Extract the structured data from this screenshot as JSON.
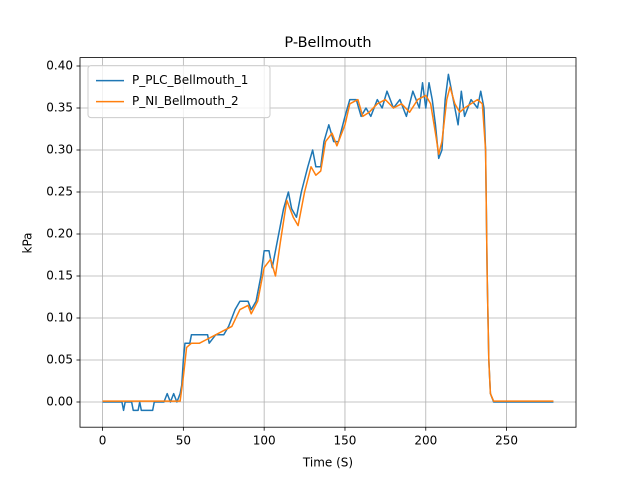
{
  "chart_data": {
    "type": "line",
    "title": "P-Bellmouth",
    "x_label": "Time (S)",
    "y_label": "kPa",
    "xlim": [
      -13.95,
      292.95
    ],
    "ylim": [
      -0.03,
      0.41
    ],
    "xticks": [
      0,
      50,
      100,
      150,
      200,
      250
    ],
    "yticks": [
      {
        "value": 0,
        "label": "0.00"
      },
      {
        "value": 0.05,
        "label": "0.05"
      },
      {
        "value": 0.1,
        "label": "0.10"
      },
      {
        "value": 0.15,
        "label": "0.15"
      },
      {
        "value": 0.2,
        "label": "0.20"
      },
      {
        "value": 0.25,
        "label": "0.25"
      },
      {
        "value": 0.3,
        "label": "0.30"
      },
      {
        "value": 0.35,
        "label": "0.35"
      },
      {
        "value": 0.4,
        "label": "0.40"
      }
    ],
    "grid": true,
    "legend": "upper-left",
    "series": [
      {
        "name": "P_PLC_Bellmouth_1",
        "color": "#1f77b4",
        "x": [
          0,
          12,
          13,
          14,
          18,
          19,
          22,
          23,
          24,
          31,
          32,
          38,
          40,
          42,
          44,
          46,
          48,
          49,
          50,
          51,
          54,
          55,
          65,
          66,
          70,
          75,
          78,
          82,
          85,
          90,
          92,
          95,
          98,
          100,
          103,
          105,
          108,
          112,
          115,
          117,
          120,
          123,
          127,
          130,
          132,
          135,
          137,
          140,
          143,
          146,
          150,
          153,
          157,
          160,
          163,
          166,
          170,
          173,
          176,
          180,
          184,
          188,
          192,
          196,
          198,
          200,
          202,
          204,
          206,
          208,
          210,
          212,
          214,
          216,
          218,
          220,
          222,
          224,
          228,
          232,
          234,
          236,
          237,
          238,
          239,
          240,
          242,
          279
        ],
        "values": [
          0,
          0,
          -0.01,
          0,
          0,
          -0.01,
          -0.01,
          0,
          -0.01,
          -0.01,
          0,
          0,
          0.01,
          0,
          0.01,
          0,
          0.01,
          0.02,
          0.05,
          0.07,
          0.07,
          0.08,
          0.08,
          0.07,
          0.08,
          0.08,
          0.09,
          0.11,
          0.12,
          0.12,
          0.11,
          0.12,
          0.15,
          0.18,
          0.18,
          0.16,
          0.19,
          0.23,
          0.25,
          0.23,
          0.22,
          0.25,
          0.28,
          0.3,
          0.28,
          0.28,
          0.31,
          0.33,
          0.31,
          0.31,
          0.34,
          0.36,
          0.36,
          0.34,
          0.35,
          0.34,
          0.36,
          0.35,
          0.37,
          0.35,
          0.36,
          0.34,
          0.37,
          0.35,
          0.38,
          0.35,
          0.38,
          0.36,
          0.33,
          0.29,
          0.3,
          0.36,
          0.39,
          0.37,
          0.35,
          0.33,
          0.37,
          0.34,
          0.36,
          0.35,
          0.37,
          0.35,
          0.3,
          0.15,
          0.05,
          0.01,
          0,
          0
        ]
      },
      {
        "name": "P_NI_Bellmouth_2",
        "color": "#ff7f0e",
        "x": [
          0,
          48,
          50,
          52,
          55,
          60,
          65,
          70,
          75,
          80,
          85,
          90,
          92,
          96,
          100,
          104,
          107,
          110,
          114,
          118,
          121,
          125,
          129,
          132,
          135,
          138,
          142,
          145,
          150,
          153,
          158,
          161,
          165,
          170,
          175,
          180,
          185,
          190,
          195,
          200,
          203,
          206,
          208,
          210,
          213,
          215,
          218,
          221,
          224,
          228,
          232,
          235,
          237,
          238,
          239,
          240,
          242,
          279
        ],
        "values": [
          0.001,
          0.001,
          0.03,
          0.065,
          0.07,
          0.07,
          0.075,
          0.08,
          0.085,
          0.09,
          0.11,
          0.115,
          0.105,
          0.12,
          0.16,
          0.17,
          0.15,
          0.19,
          0.24,
          0.22,
          0.21,
          0.25,
          0.28,
          0.27,
          0.275,
          0.31,
          0.32,
          0.305,
          0.33,
          0.355,
          0.36,
          0.34,
          0.345,
          0.355,
          0.36,
          0.35,
          0.355,
          0.345,
          0.36,
          0.365,
          0.355,
          0.32,
          0.295,
          0.31,
          0.36,
          0.375,
          0.355,
          0.345,
          0.35,
          0.355,
          0.36,
          0.355,
          0.3,
          0.15,
          0.05,
          0.01,
          0.001,
          0.001
        ]
      }
    ]
  }
}
